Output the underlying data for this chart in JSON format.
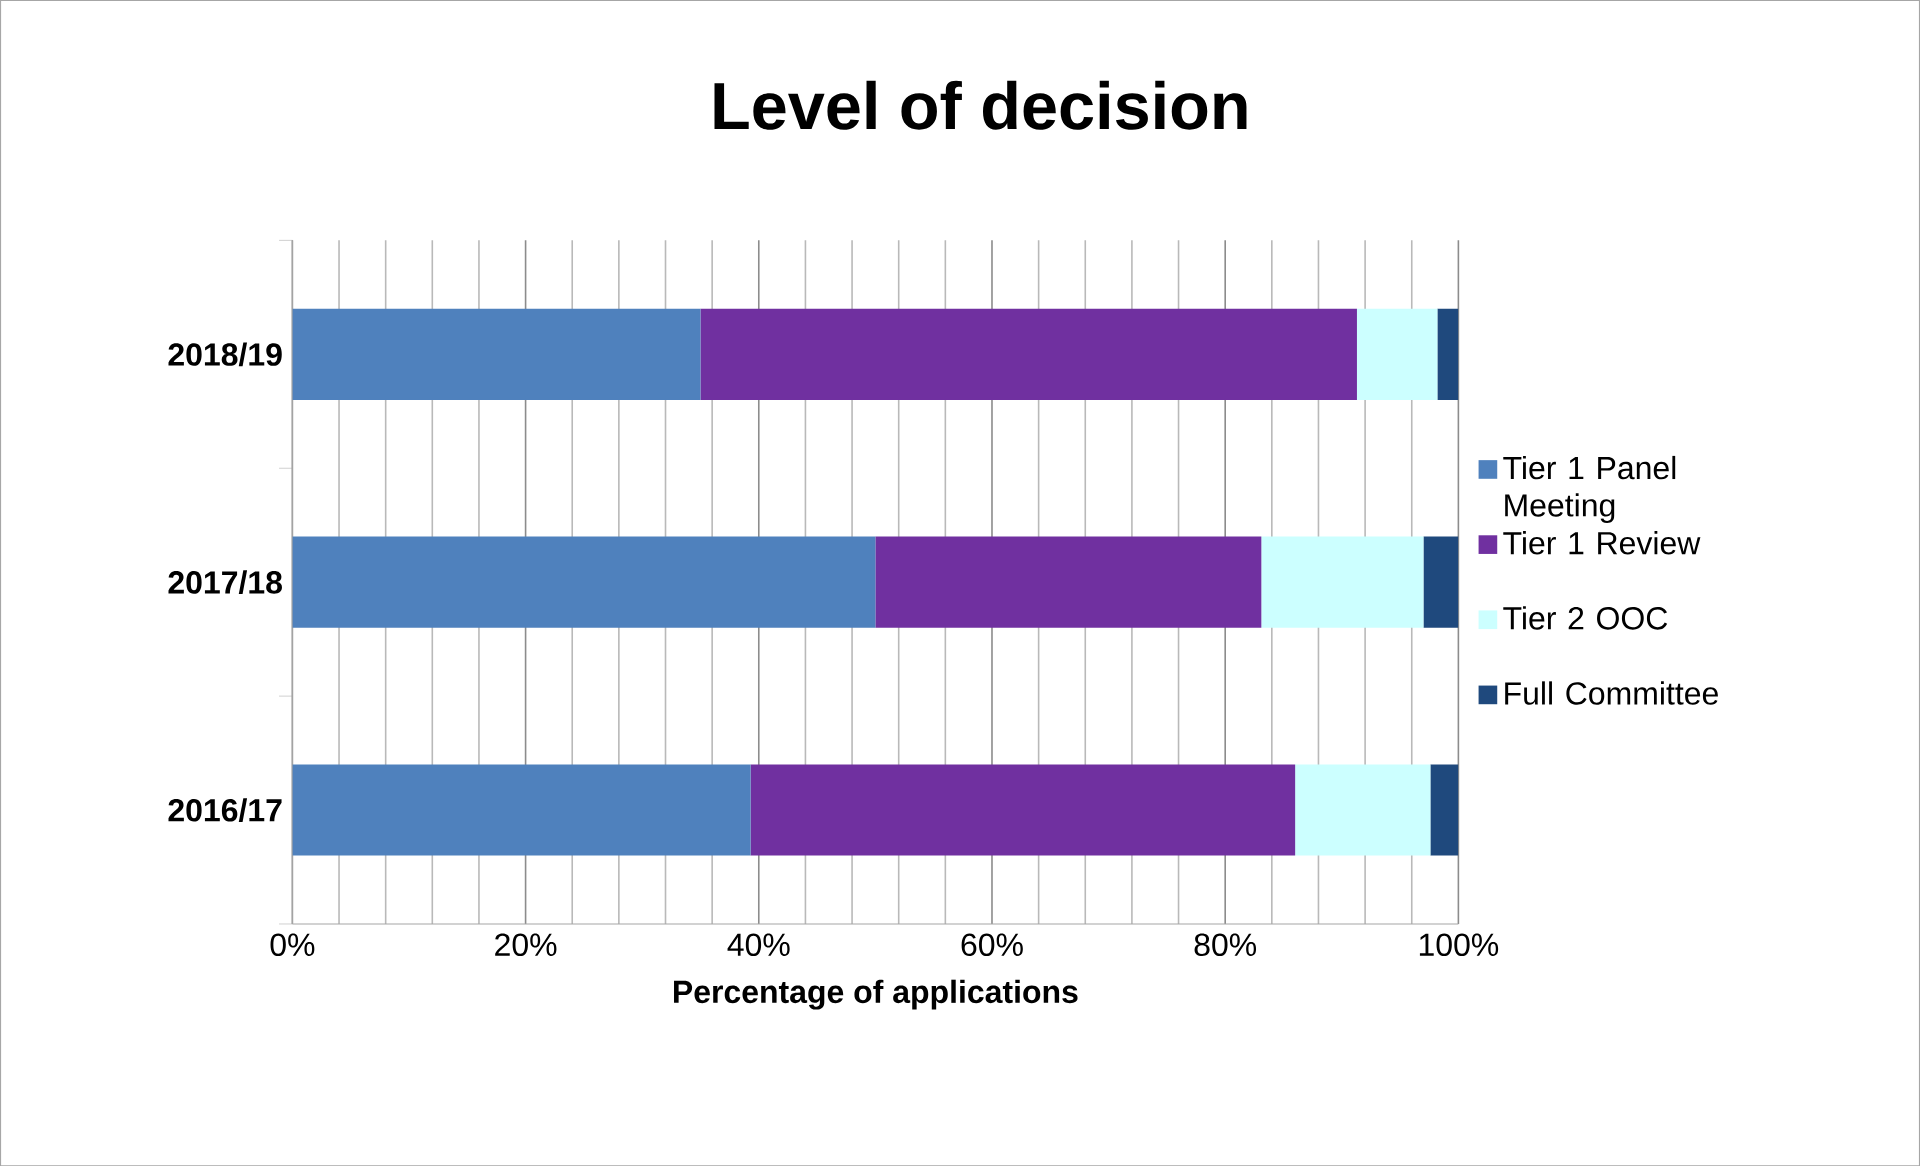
{
  "chart_data": {
    "type": "bar",
    "orientation": "horizontal",
    "stacked": true,
    "title": "Level of decision",
    "xlabel": "Percentage of applications",
    "categories": [
      "2018/19",
      "2017/18",
      "2016/17"
    ],
    "series": [
      {
        "name": "Tier 1 Panel Meeting",
        "color": "#4f81bd",
        "values": [
          35.0,
          50.0,
          39.3
        ]
      },
      {
        "name": "Tier 1 Review",
        "color": "#7030a0",
        "values": [
          56.3,
          33.1,
          46.7
        ]
      },
      {
        "name": "Tier 2 OOC",
        "color": "#ccffff",
        "values": [
          6.9,
          13.9,
          11.6
        ]
      },
      {
        "name": "Full Committee",
        "color": "#1f497d",
        "values": [
          1.8,
          3.0,
          2.4
        ]
      }
    ],
    "xlim": [
      0,
      100
    ],
    "xticks": [
      {
        "value": 0,
        "label": "0%"
      },
      {
        "value": 20,
        "label": "20%"
      },
      {
        "value": 40,
        "label": "40%"
      },
      {
        "value": 60,
        "label": "60%"
      },
      {
        "value": 80,
        "label": "80%"
      },
      {
        "value": 100,
        "label": "100%"
      }
    ],
    "grid": "x",
    "legend": "right"
  }
}
